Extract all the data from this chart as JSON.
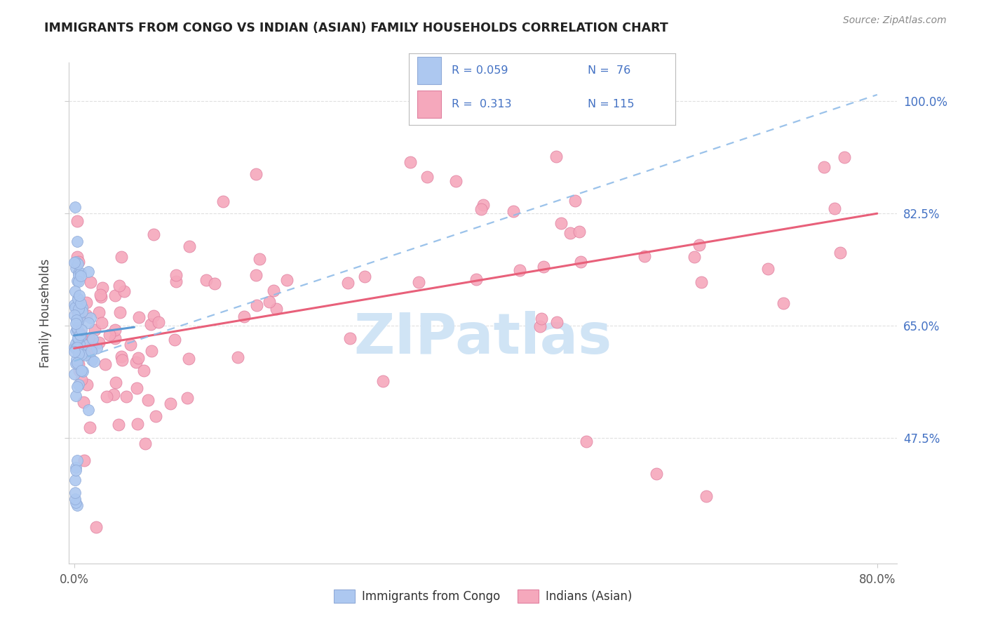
{
  "title": "IMMIGRANTS FROM CONGO VS INDIAN (ASIAN) FAMILY HOUSEHOLDS CORRELATION CHART",
  "source": "Source: ZipAtlas.com",
  "ylabel": "Family Households",
  "xlim": [
    -0.005,
    0.82
  ],
  "ylim": [
    0.28,
    1.06
  ],
  "ytick_positions": [
    0.475,
    0.65,
    0.825,
    1.0
  ],
  "ytick_labels": [
    "47.5%",
    "65.0%",
    "82.5%",
    "100.0%"
  ],
  "xtick_positions": [
    0.0,
    0.8
  ],
  "xtick_labels": [
    "0.0%",
    "80.0%"
  ],
  "congo_color": "#adc8f0",
  "congo_edge_color": "#90aad8",
  "indian_color": "#f5a8bc",
  "indian_edge_color": "#e080a0",
  "congo_line_color": "#5b9bd5",
  "indian_line_color": "#e8607a",
  "dashed_line_color": "#90bce8",
  "watermark_color": "#d0e4f5",
  "background_color": "#ffffff",
  "grid_color": "#e0e0e0",
  "title_color": "#222222",
  "source_color": "#888888",
  "tick_label_color_right": "#4472c4",
  "tick_label_color_bottom": "#555555",
  "legend_text_color": "#4472c4",
  "legend_r1": "R = 0.059",
  "legend_n1": "N =  76",
  "legend_r2": "R =  0.313",
  "legend_n2": "N = 115",
  "congo_line_x": [
    0.0,
    0.06
  ],
  "congo_line_y": [
    0.635,
    0.648
  ],
  "indian_line_x": [
    0.0,
    0.8
  ],
  "indian_line_y": [
    0.615,
    0.825
  ],
  "dashed_line_x": [
    0.0,
    0.8
  ],
  "dashed_line_y": [
    0.595,
    1.01
  ]
}
